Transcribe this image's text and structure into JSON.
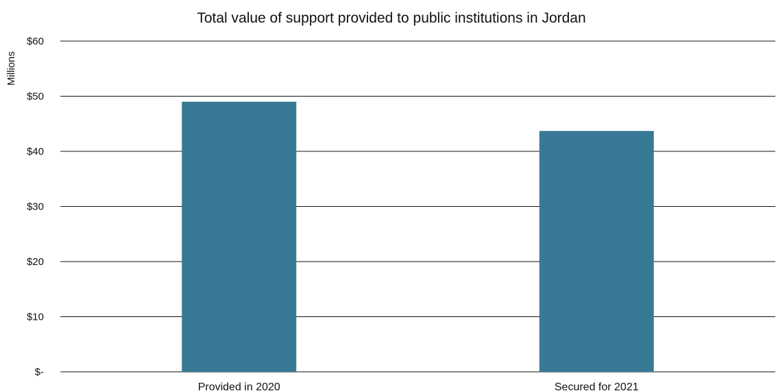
{
  "chart_data": {
    "type": "bar",
    "title": "Total value of support provided to public institutions in Jordan",
    "ylabel": "Millions",
    "xlabel": "",
    "categories": [
      "Provided in 2020",
      "Secured for 2021"
    ],
    "values": [
      49,
      43.7
    ],
    "ylim": [
      0,
      60
    ],
    "yticks": [
      0,
      10,
      20,
      30,
      40,
      50,
      60
    ],
    "ytick_labels": [
      "$-",
      "$10",
      "$20",
      "$30",
      "$40",
      "$50",
      "$60"
    ],
    "grid": true,
    "legend": "none",
    "colors": {
      "bar": "#387996",
      "grid": "#111111",
      "text": "#111111"
    }
  }
}
